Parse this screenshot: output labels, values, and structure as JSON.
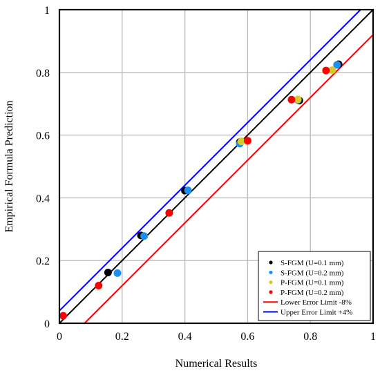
{
  "chart_data": {
    "type": "scatter",
    "title": "",
    "xlabel": "Numerical Results",
    "ylabel": "Empirical Formula Prediction",
    "xlim": [
      0,
      1
    ],
    "ylim": [
      0,
      1
    ],
    "xticks": [
      "0",
      "0.2",
      "0.4",
      "0.6",
      "0.8",
      "1"
    ],
    "yticks": [
      "0",
      "0.2",
      "0.4",
      "0.6",
      "0.8",
      "1"
    ],
    "grid": true,
    "legend_position": "bottom-right",
    "series": [
      {
        "name": "S-FGM (U=0.1 mm)",
        "color": "#000000",
        "points": [
          [
            0.155,
            0.162
          ],
          [
            0.26,
            0.28
          ],
          [
            0.4,
            0.423
          ],
          [
            0.575,
            0.578
          ],
          [
            0.765,
            0.71
          ],
          [
            0.89,
            0.826
          ]
        ]
      },
      {
        "name": "S-FGM (U=0.2 mm)",
        "color": "#1f8fef",
        "points": [
          [
            0.185,
            0.16
          ],
          [
            0.27,
            0.278
          ],
          [
            0.41,
            0.424
          ],
          [
            0.575,
            0.573
          ],
          [
            0.76,
            0.712
          ],
          [
            0.885,
            0.824
          ]
        ]
      },
      {
        "name": "P-FGM (U=0.1 mm)",
        "color": "#d4cc2a",
        "points": [
          [
            0.58,
            0.58
          ],
          [
            0.76,
            0.714
          ],
          [
            0.87,
            0.807
          ]
        ]
      },
      {
        "name": "P-FGM (U=0.2 mm)",
        "color": "#ff0000",
        "points": [
          [
            0.012,
            0.024
          ],
          [
            0.125,
            0.12
          ],
          [
            0.35,
            0.352
          ],
          [
            0.6,
            0.582
          ],
          [
            0.74,
            0.713
          ],
          [
            0.85,
            0.806
          ]
        ]
      }
    ],
    "lines": [
      {
        "name": "",
        "color": "#000000",
        "x": [
          0,
          1
        ],
        "y": [
          0,
          1
        ]
      },
      {
        "name": "Lower Error Limit -8%",
        "color": "#ff0000",
        "x": [
          0.08,
          1
        ],
        "y": [
          0,
          0.92
        ]
      },
      {
        "name": "Upper Error Limit +4%",
        "color": "#0000ff",
        "x": [
          0,
          0.96
        ],
        "y": [
          0.04,
          1
        ]
      }
    ]
  }
}
